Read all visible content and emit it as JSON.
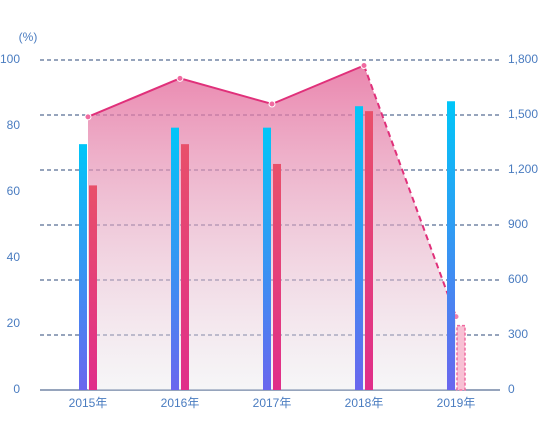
{
  "chart_data": {
    "type": "combo",
    "y_label": "(%)",
    "categories": [
      "2015年",
      "2016年",
      "2017年",
      "2018年",
      "2019年"
    ],
    "ylim": [
      0,
      100
    ],
    "yticks": [
      0,
      20,
      40,
      60,
      80,
      100
    ],
    "y2lim": [
      0,
      1800
    ],
    "y2ticks": [
      0,
      300,
      600,
      900,
      {
        "value": 1200,
        "label": "1,200"
      },
      {
        "value": 1500,
        "label": "1,500"
      },
      {
        "value": 1800,
        "label": "1,800"
      }
    ],
    "grid": true,
    "series": [
      {
        "type": "bar",
        "color": "#00c6f8",
        "values": [
          74.5,
          79.5,
          79.5,
          86,
          87.5
        ]
      },
      {
        "type": "bar",
        "color": "#e8506a",
        "values": [
          62,
          74.5,
          68.5,
          84.5,
          19.5
        ]
      },
      {
        "type": "line",
        "color": "#e0307a",
        "axis": "y2",
        "values": [
          1490,
          1700,
          1560,
          1770,
          400
        ]
      }
    ]
  }
}
